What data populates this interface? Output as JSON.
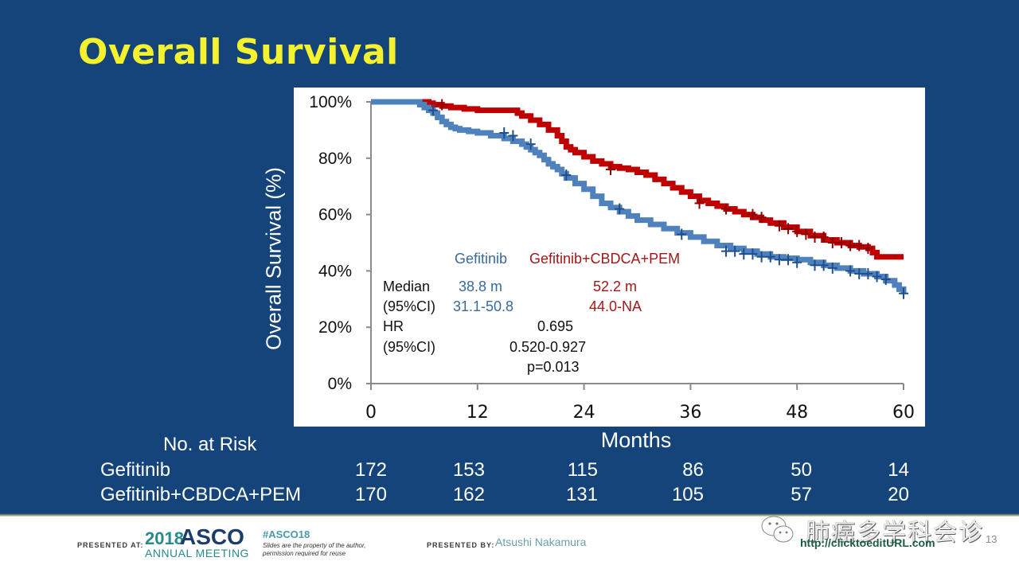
{
  "slide": {
    "title": "Overall Survival",
    "colors": {
      "background": "#15447a",
      "title": "#f4f22e",
      "gefitinib": "#4f81bd",
      "gefitinib_censor": "#1f4e8c",
      "combo": "#c00000"
    }
  },
  "chart_data": {
    "type": "line",
    "subtype": "kaplan-meier",
    "title": "Overall Survival",
    "xlabel": "Months",
    "ylabel": "Overall Survival (%)",
    "xlim": [
      0,
      60
    ],
    "ylim": [
      0,
      100
    ],
    "x_ticks": [
      "0",
      "12",
      "24",
      "36",
      "48",
      "60"
    ],
    "x_tick_values": [
      0,
      12,
      24,
      36,
      48,
      60
    ],
    "y_ticks": [
      "0%",
      "20%",
      "40%",
      "60%",
      "80%",
      "100%"
    ],
    "y_tick_values": [
      0,
      20,
      40,
      60,
      80,
      100
    ],
    "grid": false,
    "series": [
      {
        "name": "Gefitinib",
        "color": "#4f81bd",
        "censor_color": "#1f4e8c",
        "points": [
          [
            0,
            100
          ],
          [
            5,
            100
          ],
          [
            6,
            98
          ],
          [
            7,
            96
          ],
          [
            8,
            93
          ],
          [
            9,
            91
          ],
          [
            10,
            90
          ],
          [
            12,
            89
          ],
          [
            15,
            87
          ],
          [
            17,
            85
          ],
          [
            18,
            83
          ],
          [
            19,
            81
          ],
          [
            20,
            78
          ],
          [
            21,
            76
          ],
          [
            22,
            73
          ],
          [
            24,
            69
          ],
          [
            26,
            64
          ],
          [
            28,
            61
          ],
          [
            30,
            58
          ],
          [
            33,
            55
          ],
          [
            36,
            52
          ],
          [
            39,
            49
          ],
          [
            42,
            47
          ],
          [
            45,
            45
          ],
          [
            48,
            44
          ],
          [
            51,
            42
          ],
          [
            54,
            40
          ],
          [
            57,
            38
          ],
          [
            59,
            35
          ],
          [
            60,
            32
          ]
        ],
        "censor_times": [
          [
            7,
            97
          ],
          [
            15,
            89
          ],
          [
            16,
            88
          ],
          [
            18,
            85
          ],
          [
            22,
            74
          ],
          [
            28,
            62
          ],
          [
            35,
            53
          ],
          [
            40,
            47
          ],
          [
            41,
            47
          ],
          [
            42,
            46
          ],
          [
            43,
            46
          ],
          [
            44,
            45
          ],
          [
            45,
            45
          ],
          [
            46,
            44
          ],
          [
            47,
            44
          ],
          [
            48,
            43
          ],
          [
            50,
            42
          ],
          [
            51,
            42
          ],
          [
            52,
            41
          ],
          [
            54,
            40
          ],
          [
            55,
            39
          ],
          [
            56,
            39
          ],
          [
            57,
            38
          ],
          [
            58,
            37
          ],
          [
            60,
            32
          ]
        ]
      },
      {
        "name": "Gefitinib+CBDCA+PEM",
        "color": "#c00000",
        "points": [
          [
            0,
            100
          ],
          [
            6,
            100
          ],
          [
            7,
            99
          ],
          [
            9,
            98
          ],
          [
            12,
            97
          ],
          [
            16,
            97
          ],
          [
            17,
            95
          ],
          [
            19,
            92
          ],
          [
            21,
            88
          ],
          [
            22,
            84
          ],
          [
            23,
            82
          ],
          [
            25,
            79
          ],
          [
            27,
            77
          ],
          [
            29,
            76
          ],
          [
            31,
            74
          ],
          [
            33,
            71
          ],
          [
            35,
            68
          ],
          [
            37,
            65
          ],
          [
            39,
            63
          ],
          [
            41,
            61
          ],
          [
            43,
            59
          ],
          [
            45,
            57
          ],
          [
            48,
            54
          ],
          [
            51,
            51
          ],
          [
            54,
            49
          ],
          [
            56,
            48
          ],
          [
            57,
            45
          ],
          [
            60,
            45
          ]
        ],
        "censor_times": [
          [
            8,
            99
          ],
          [
            27,
            76
          ],
          [
            37,
            64
          ],
          [
            40,
            62
          ],
          [
            43,
            60
          ],
          [
            44,
            59
          ],
          [
            46,
            56
          ],
          [
            47,
            55
          ],
          [
            48,
            54
          ],
          [
            49,
            53
          ],
          [
            50,
            52
          ],
          [
            51,
            52
          ],
          [
            52,
            50
          ],
          [
            53,
            50
          ],
          [
            54,
            49
          ],
          [
            55,
            49
          ],
          [
            56,
            48
          ]
        ]
      }
    ],
    "annotations": {
      "legend": {
        "gefitinib": "Gefitinib",
        "combo": "Gefitinib+CBDCA+PEM"
      },
      "median_label": "Median",
      "median_gefitinib": "38.8 m",
      "median_combo": "52.2 m",
      "ci_label": "(95%CI)",
      "ci_gefitinib": "31.1-50.8",
      "ci_combo": "44.0-NA",
      "hr_label": "HR",
      "hr_value": "0.695",
      "hr_ci_label": "(95%CI)",
      "hr_ci_value": "0.520-0.927",
      "p_value": "p=0.013"
    }
  },
  "risk_table": {
    "title": "No. at Risk",
    "rows": [
      {
        "label": "Gefitinib",
        "values": [
          "172",
          "153",
          "115",
          "86",
          "50",
          "14"
        ]
      },
      {
        "label": "Gefitinib+CBDCA+PEM",
        "values": [
          "170",
          "162",
          "131",
          "105",
          "57",
          "20"
        ]
      }
    ]
  },
  "footer": {
    "presented_at": "PRESENTED AT:",
    "asco_year": "2018",
    "asco_name": "ASCO",
    "asco_meeting": "ANNUAL MEETING",
    "hashtag": "#ASCO18",
    "disclaimer": "Slides are the property of the author, permission required for reuse",
    "presented_by": "PRESENTED BY:",
    "presenter": "Atsushi Nakamura",
    "url": "http://clicktoeditURL.com",
    "page_number": "13",
    "watermark": "肺癌多学科会诊"
  }
}
